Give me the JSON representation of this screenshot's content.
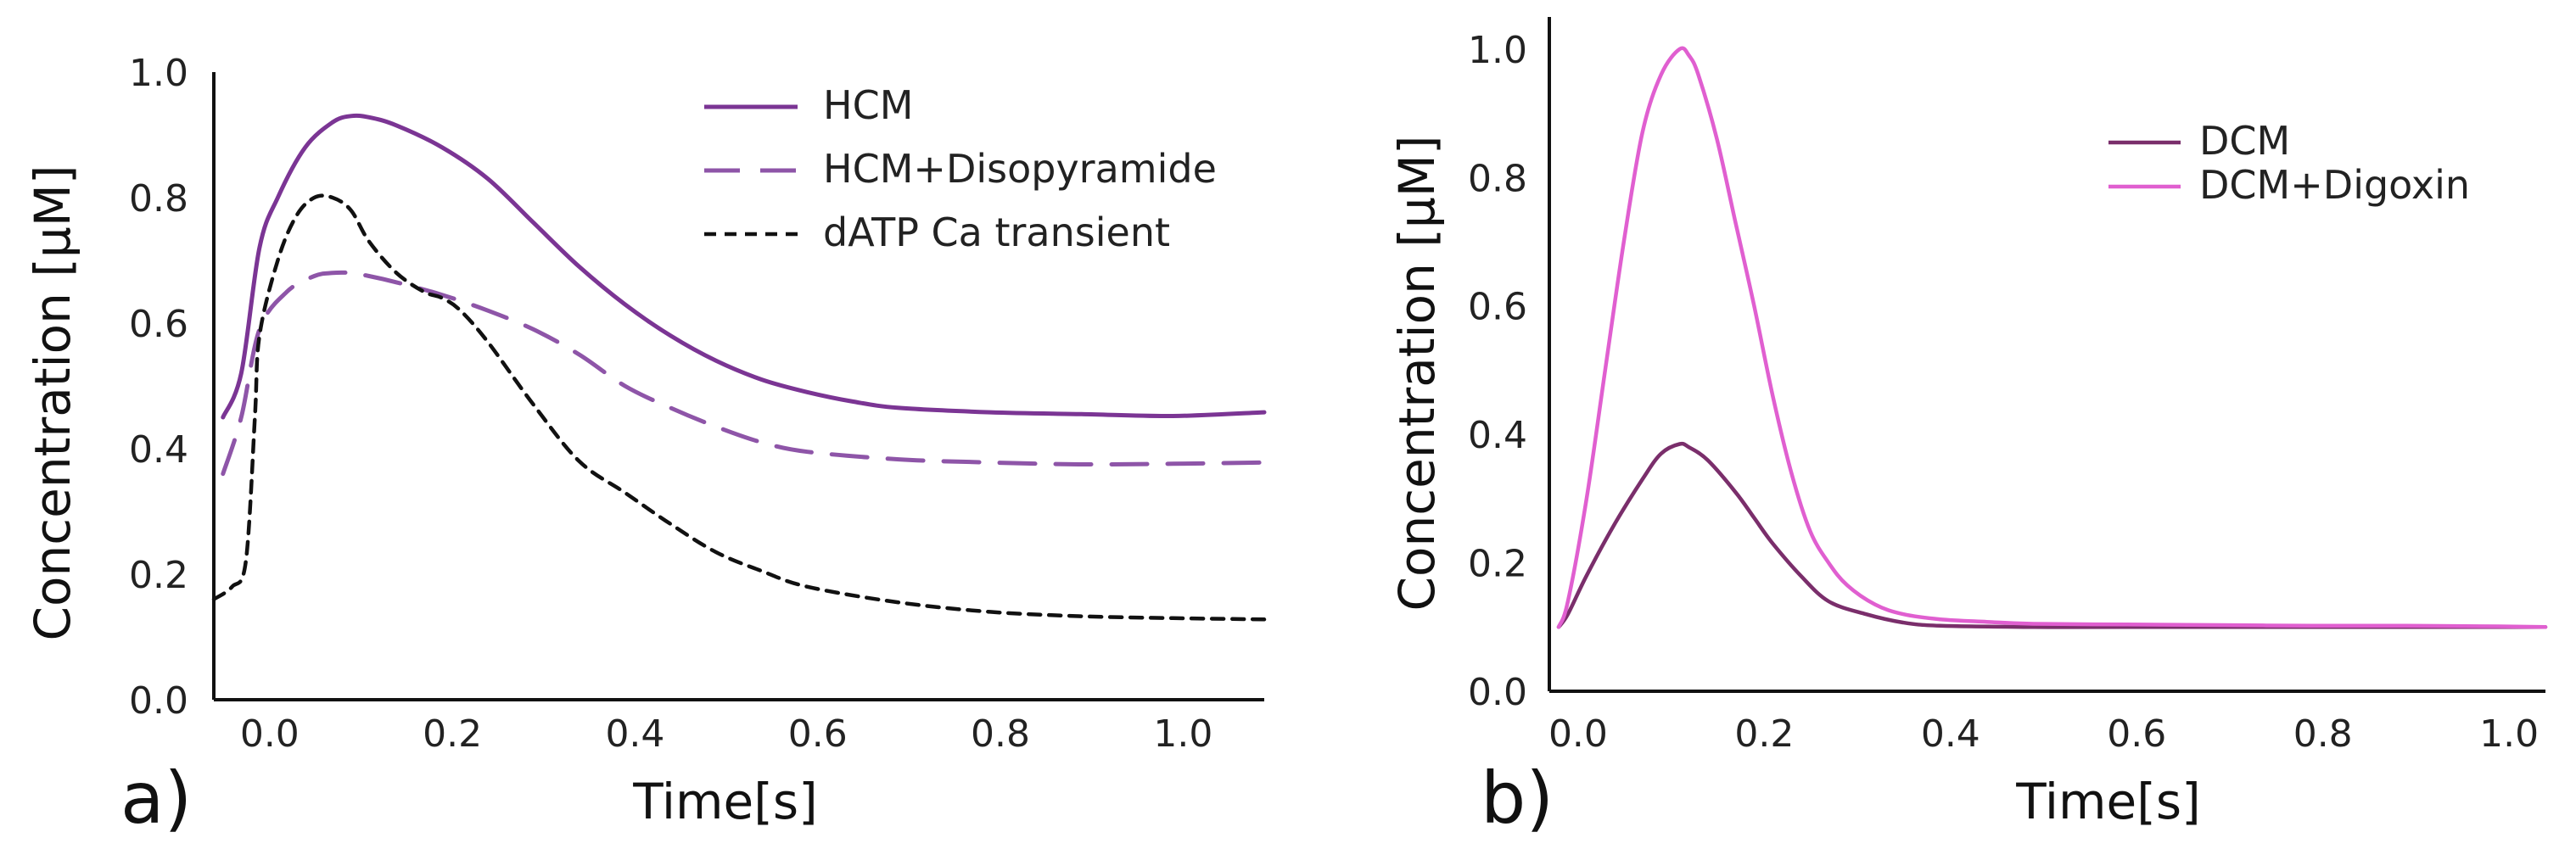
{
  "chart_data": [
    {
      "panel_label": "a)",
      "type": "line",
      "xlabel": "Time[s]",
      "ylabel": "Concentration [μM]",
      "xlim": [
        -0.05,
        1.1
      ],
      "ylim": [
        0.0,
        1.0
      ],
      "xticks": [
        "0.0",
        "0.2",
        "0.4",
        "0.6",
        "0.8",
        "1.0"
      ],
      "yticks": [
        "0.0",
        "0.2",
        "0.4",
        "0.6",
        "0.8",
        "1.0"
      ],
      "legend_position": "top-right",
      "series": [
        {
          "name": "HCM",
          "style": "solid",
          "color": "#7b3594",
          "x": [
            -0.04,
            -0.02,
            0.0,
            0.02,
            0.05,
            0.08,
            0.1,
            0.12,
            0.15,
            0.2,
            0.25,
            0.3,
            0.35,
            0.4,
            0.45,
            0.5,
            0.55,
            0.6,
            0.65,
            0.7,
            0.8,
            0.9,
            1.0,
            1.1
          ],
          "y": [
            0.45,
            0.52,
            0.72,
            0.8,
            0.88,
            0.92,
            0.93,
            0.928,
            0.915,
            0.88,
            0.83,
            0.76,
            0.69,
            0.63,
            0.58,
            0.54,
            0.51,
            0.49,
            0.475,
            0.465,
            0.458,
            0.455,
            0.452,
            0.458
          ]
        },
        {
          "name": "HCM+Disopyramide",
          "style": "dashed",
          "color": "#8e55a8",
          "x": [
            -0.04,
            -0.02,
            0.0,
            0.03,
            0.06,
            0.08,
            0.1,
            0.12,
            0.15,
            0.2,
            0.25,
            0.3,
            0.35,
            0.4,
            0.45,
            0.5,
            0.55,
            0.6,
            0.7,
            0.8,
            0.9,
            1.0,
            1.1
          ],
          "y": [
            0.36,
            0.45,
            0.59,
            0.65,
            0.675,
            0.68,
            0.68,
            0.675,
            0.665,
            0.645,
            0.62,
            0.59,
            0.55,
            0.5,
            0.465,
            0.435,
            0.41,
            0.395,
            0.383,
            0.378,
            0.375,
            0.376,
            0.378
          ]
        },
        {
          "name": "dATP Ca transient",
          "style": "dotted",
          "color": "#111111",
          "x": [
            -0.05,
            -0.03,
            -0.015,
            -0.005,
            0.0,
            0.02,
            0.04,
            0.06,
            0.08,
            0.1,
            0.12,
            0.15,
            0.18,
            0.2,
            0.22,
            0.25,
            0.3,
            0.35,
            0.4,
            0.45,
            0.5,
            0.55,
            0.6,
            0.7,
            0.8,
            0.9,
            1.0,
            1.1
          ],
          "y": [
            0.16,
            0.18,
            0.22,
            0.45,
            0.58,
            0.7,
            0.77,
            0.8,
            0.8,
            0.78,
            0.73,
            0.68,
            0.65,
            0.64,
            0.62,
            0.57,
            0.47,
            0.38,
            0.33,
            0.28,
            0.235,
            0.205,
            0.18,
            0.155,
            0.14,
            0.133,
            0.13,
            0.128
          ]
        }
      ]
    },
    {
      "panel_label": "b)",
      "type": "line",
      "xlabel": "Time[s]",
      "ylabel": "Concentration [μM]",
      "xlim": [
        -0.02,
        1.05
      ],
      "ylim": [
        0.0,
        1.05
      ],
      "xticks": [
        "0.0",
        "0.2",
        "0.4",
        "0.6",
        "0.8",
        "1.0"
      ],
      "yticks": [
        "0.0",
        "0.2",
        "0.4",
        "0.6",
        "0.8",
        "1.0"
      ],
      "legend_position": "top-right",
      "series": [
        {
          "name": "DCM",
          "style": "solid",
          "color": "#7a2e6b",
          "x": [
            -0.01,
            0.0,
            0.02,
            0.05,
            0.08,
            0.1,
            0.12,
            0.13,
            0.15,
            0.18,
            0.2,
            0.22,
            0.25,
            0.28,
            0.32,
            0.36,
            0.4,
            0.5,
            0.6,
            0.7,
            0.8,
            0.9,
            1.0,
            1.05
          ],
          "y": [
            0.1,
            0.12,
            0.18,
            0.26,
            0.33,
            0.37,
            0.385,
            0.38,
            0.36,
            0.31,
            0.27,
            0.23,
            0.18,
            0.14,
            0.12,
            0.107,
            0.102,
            0.1,
            0.1,
            0.1,
            0.1,
            0.1,
            0.1,
            0.1
          ]
        },
        {
          "name": "DCM+Digoxin",
          "style": "solid",
          "color": "#e05fd0",
          "x": [
            -0.01,
            0.0,
            0.02,
            0.04,
            0.06,
            0.08,
            0.1,
            0.12,
            0.13,
            0.14,
            0.16,
            0.18,
            0.2,
            0.22,
            0.24,
            0.26,
            0.28,
            0.3,
            0.33,
            0.36,
            0.4,
            0.45,
            0.5,
            0.6,
            0.7,
            0.8,
            0.9,
            1.0,
            1.05
          ],
          "y": [
            0.1,
            0.14,
            0.3,
            0.5,
            0.7,
            0.87,
            0.96,
            1.0,
            0.99,
            0.96,
            0.86,
            0.73,
            0.6,
            0.46,
            0.34,
            0.25,
            0.2,
            0.165,
            0.135,
            0.12,
            0.112,
            0.108,
            0.105,
            0.104,
            0.103,
            0.102,
            0.102,
            0.101,
            0.1
          ]
        }
      ]
    }
  ]
}
